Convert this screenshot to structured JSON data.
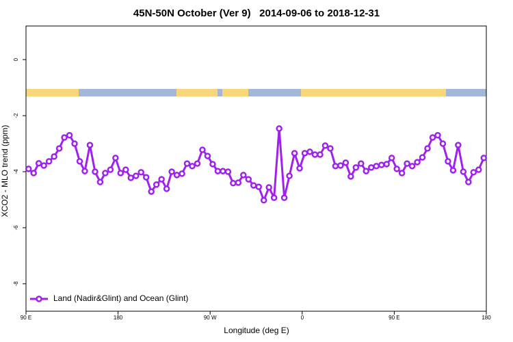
{
  "chart_data": {
    "type": "line",
    "title": "45N-50N October (Ver 9)   2014-09-06 to 2018-12-31",
    "xlabel": "Longitude (deg E)",
    "ylabel": "XCO2 - MLO trend (ppm)",
    "x": [
      92.5,
      97.5,
      102.5,
      107.5,
      112.5,
      117.5,
      122.5,
      127.5,
      132.5,
      137.5,
      142.5,
      147.5,
      152.5,
      157.5,
      162.5,
      167.5,
      172.5,
      177.5,
      182.5,
      187.5,
      192.5,
      197.5,
      202.5,
      207.5,
      212.5,
      217.5,
      222.5,
      227.5,
      232.5,
      237.5,
      242.5,
      247.5,
      252.5,
      257.5,
      262.5,
      267.5,
      272.5,
      277.5,
      282.5,
      287.5,
      292.5,
      297.5,
      302.5,
      307.5,
      312.5,
      317.5,
      322.5,
      327.5,
      332.5,
      337.5,
      342.5,
      347.5,
      352.5,
      357.5,
      362.5,
      367.5,
      372.5,
      377.5,
      382.5,
      387.5,
      392.5,
      397.5,
      402.5,
      407.5,
      412.5,
      417.5,
      422.5,
      427.5,
      432.5,
      437.5,
      442.5,
      447.5,
      452.5,
      457.5,
      462.5,
      467.5,
      472.5,
      477.5,
      482.5,
      487.5,
      492.5,
      497.5,
      502.5,
      507.5,
      512.5,
      517.5,
      522.5,
      527.5,
      532.5,
      537.5
    ],
    "series": [
      {
        "name": "Land (Nadir&Glint) and Ocean (Glint)",
        "color": "#a020f0",
        "values": [
          -3.9,
          -4.05,
          -3.7,
          -3.78,
          -3.63,
          -3.46,
          -3.17,
          -2.78,
          -2.7,
          -3.0,
          -3.63,
          -3.98,
          -3.05,
          -4.0,
          -4.37,
          -4.05,
          -3.93,
          -3.51,
          -4.05,
          -3.93,
          -4.22,
          -4.15,
          -4.02,
          -4.2,
          -4.71,
          -4.46,
          -4.27,
          -4.61,
          -4.0,
          -4.12,
          -4.07,
          -3.71,
          -3.8,
          -3.71,
          -3.22,
          -3.44,
          -3.73,
          -3.98,
          -3.98,
          -4.0,
          -4.41,
          -4.39,
          -4.12,
          -4.27,
          -4.49,
          -4.54,
          -5.02,
          -4.56,
          -4.93,
          -2.46,
          -4.93,
          -4.15,
          -3.34,
          -3.88,
          -3.34,
          -3.29,
          -3.39,
          -3.39,
          -3.07,
          -3.17,
          -3.8,
          -3.78,
          -3.68,
          -4.17,
          -3.85,
          -3.71,
          -3.98,
          -3.85,
          -3.8,
          -3.76,
          -3.73,
          -3.51,
          -3.9,
          -4.05,
          -3.71,
          -3.8,
          -3.66,
          -3.49,
          -3.17,
          -2.78,
          -2.7,
          -3.0,
          -3.63,
          -3.95,
          -3.05,
          -4.0,
          -4.37,
          -4.02,
          -3.93,
          -3.51
        ]
      }
    ],
    "xlim": [
      90,
      540
    ],
    "xticks": [
      {
        "value": 90,
        "label": "90 E"
      },
      180,
      {
        "value": 270,
        "label": "90 W"
      },
      {
        "value": 360,
        "label": "0"
      },
      {
        "value": 450,
        "label": "90 E"
      },
      {
        "value": 540,
        "label": "180"
      }
    ],
    "ylim": [
      -8.98,
      1.2
    ],
    "yticks": [
      0,
      -2,
      -4,
      -6,
      -8
    ],
    "legend": "bottom-left"
  }
}
